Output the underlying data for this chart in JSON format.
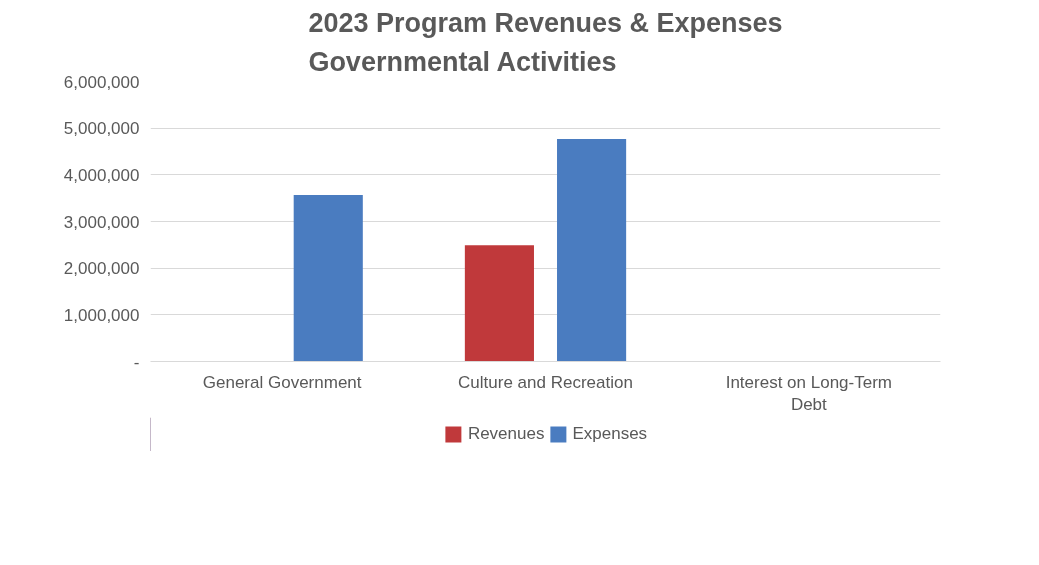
{
  "chart_data": {
    "type": "bar",
    "title": "2023 Program Revenues & Expenses\nGovernmental Activities",
    "categories": [
      "General Government",
      "Culture and Recreation",
      "Interest on Long-Term\nDebt"
    ],
    "series": [
      {
        "name": "Revenues",
        "color": "#c0393b",
        "values": [
          0,
          2490000,
          0
        ]
      },
      {
        "name": "Expenses",
        "color": "#4a7cc0",
        "values": [
          3570000,
          4770000,
          0
        ]
      }
    ],
    "ylim": [
      0,
      6000000
    ],
    "yticks": [
      {
        "value": 0,
        "label": "-"
      },
      {
        "value": 1000000,
        "label": "1,000,000"
      },
      {
        "value": 2000000,
        "label": "2,000,000"
      },
      {
        "value": 3000000,
        "label": "3,000,000"
      },
      {
        "value": 4000000,
        "label": "4,000,000"
      },
      {
        "value": 5000000,
        "label": "5,000,000"
      },
      {
        "value": 6000000,
        "label": "6,000,000"
      }
    ],
    "grid": "y",
    "legend": "bottom"
  }
}
